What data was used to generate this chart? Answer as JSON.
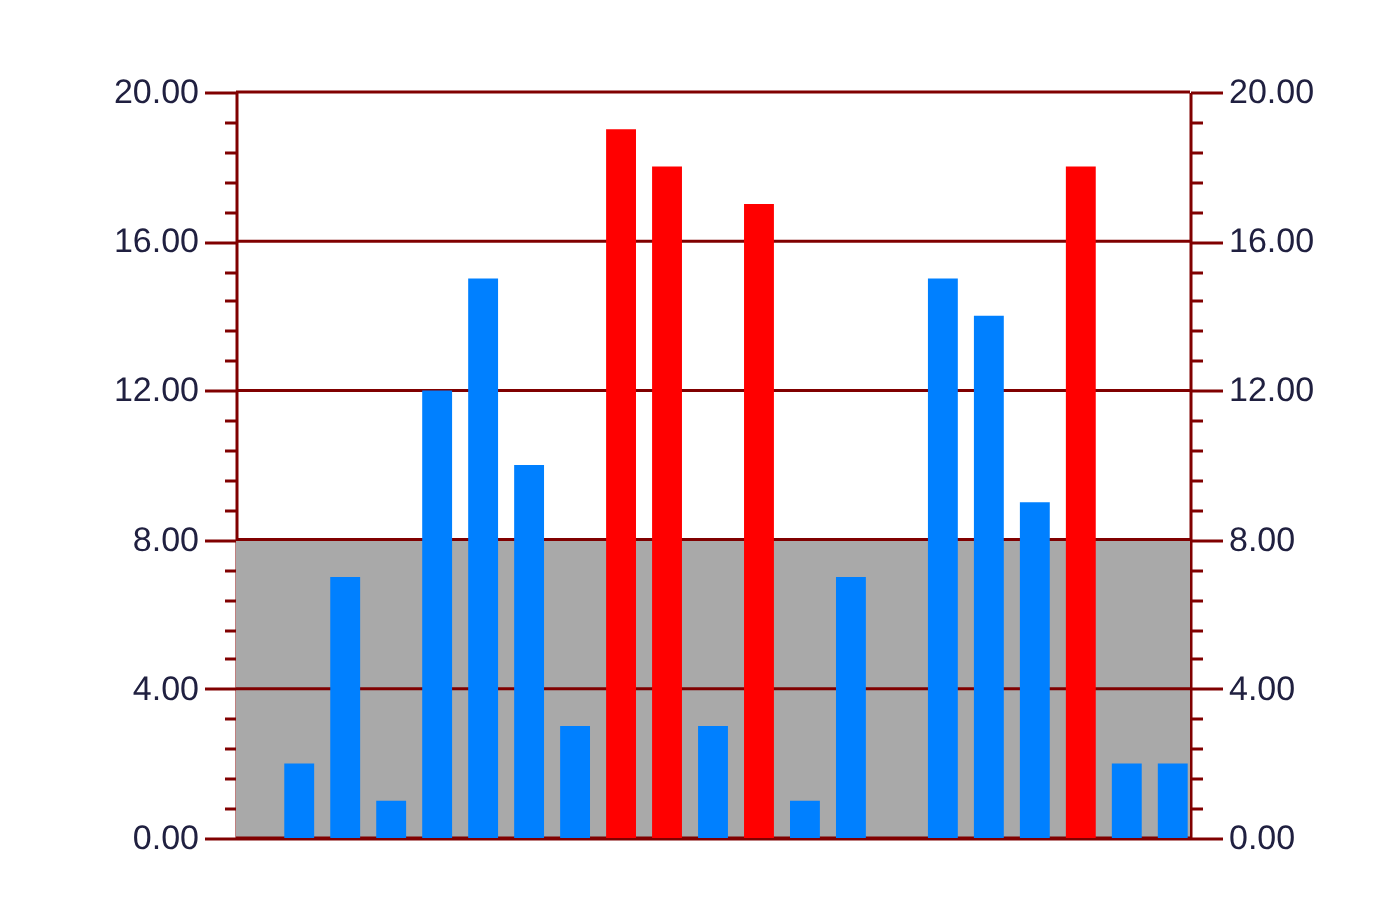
{
  "chart_data": {
    "type": "bar",
    "categories": [
      null,
      null,
      null,
      null,
      null,
      null,
      null,
      null,
      null,
      null,
      null,
      null,
      null,
      null,
      null,
      null,
      null,
      null,
      null,
      null,
      null
    ],
    "values": [
      null,
      2,
      7,
      1,
      12,
      15,
      10,
      3,
      19,
      18,
      3,
      17,
      1,
      7,
      null,
      15,
      14,
      9,
      18,
      2,
      2
    ],
    "colors": [
      "#0080ff",
      "#0080ff",
      "#0080ff",
      "#0080ff",
      "#0080ff",
      "#0080ff",
      "#0080ff",
      "#0080ff",
      "#ff0000",
      "#ff0000",
      "#0080ff",
      "#ff0000",
      "#0080ff",
      "#0080ff",
      "#0080ff",
      "#0080ff",
      "#0080ff",
      "#0080ff",
      "#ff0000",
      "#0080ff",
      "#0080ff"
    ],
    "ylim": [
      0,
      20
    ],
    "yticks": [
      {
        "value": 0,
        "label": "0.00"
      },
      {
        "value": 0.8,
        "label": null
      },
      {
        "value": 1.6,
        "label": null
      },
      {
        "value": 2.4,
        "label": null
      },
      {
        "value": 3.2,
        "label": null
      },
      {
        "value": 4,
        "label": "4.00"
      },
      {
        "value": 4.8,
        "label": null
      },
      {
        "value": 5.6,
        "label": null
      },
      {
        "value": 6.4,
        "label": null
      },
      {
        "value": 7.2,
        "label": null
      },
      {
        "value": 8,
        "label": "8.00"
      },
      {
        "value": 8.8,
        "label": null
      },
      {
        "value": 9.6,
        "label": null
      },
      {
        "value": 10.4,
        "label": null
      },
      {
        "value": 11.2,
        "label": null
      },
      {
        "value": 12,
        "label": "12.00"
      },
      {
        "value": 12.8,
        "label": null
      },
      {
        "value": 13.6,
        "label": null
      },
      {
        "value": 14.4,
        "label": null
      },
      {
        "value": 15.2,
        "label": null
      },
      {
        "value": 16,
        "label": "16.00"
      },
      {
        "value": 16.8,
        "label": null
      },
      {
        "value": 17.6,
        "label": null
      },
      {
        "value": 18.4,
        "label": null
      },
      {
        "value": 19.2,
        "label": null
      },
      {
        "value": 20,
        "label": "20.00"
      }
    ],
    "y2lim": [
      0,
      20
    ],
    "y2ticks": [
      {
        "value": 0,
        "label": "0.00"
      },
      {
        "value": 0.8,
        "label": null
      },
      {
        "value": 1.6,
        "label": null
      },
      {
        "value": 2.4,
        "label": null
      },
      {
        "value": 3.2,
        "label": null
      },
      {
        "value": 4,
        "label": "4.00"
      },
      {
        "value": 4.8,
        "label": null
      },
      {
        "value": 5.6,
        "label": null
      },
      {
        "value": 6.4,
        "label": null
      },
      {
        "value": 7.2,
        "label": null
      },
      {
        "value": 8,
        "label": "8.00"
      },
      {
        "value": 8.8,
        "label": null
      },
      {
        "value": 9.6,
        "label": null
      },
      {
        "value": 10.4,
        "label": null
      },
      {
        "value": 11.2,
        "label": null
      },
      {
        "value": 12,
        "label": "12.00"
      },
      {
        "value": 12.8,
        "label": null
      },
      {
        "value": 13.6,
        "label": null
      },
      {
        "value": 14.4,
        "label": null
      },
      {
        "value": 15.2,
        "label": null
      },
      {
        "value": 16,
        "label": "16.00"
      },
      {
        "value": 16.8,
        "label": null
      },
      {
        "value": 17.6,
        "label": null
      },
      {
        "value": 18.4,
        "label": null
      },
      {
        "value": 19.2,
        "label": null
      },
      {
        "value": 20,
        "label": "20.00"
      }
    ],
    "bands": [
      {
        "axis": "y",
        "from": 0,
        "to": 8,
        "color": "#a9a9a9"
      }
    ],
    "grid": "y",
    "tick_labels": "y"
  }
}
